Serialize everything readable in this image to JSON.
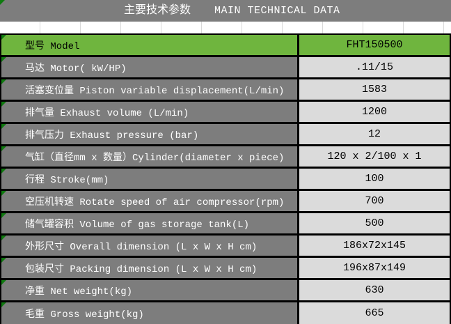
{
  "title_bar": {
    "title_zh": "主要技术参数",
    "title_en": "MAIN TECHNICAL DATA"
  },
  "table": {
    "rows": [
      {
        "label": "型号 Model",
        "value": "FHT150500",
        "highlight": true
      },
      {
        "label": "马达 Motor( kW/HP)",
        "value": ".11/15",
        "highlight": false
      },
      {
        "label": "活塞变位量 Piston variable displacement(L/min)",
        "value": "1583",
        "highlight": false
      },
      {
        "label": "排气量 Exhaust volume (L/min)",
        "value": "1200",
        "highlight": false
      },
      {
        "label": "排气压力 Exhaust pressure (bar)",
        "value": "12",
        "highlight": false
      },
      {
        "label": "气缸（直径mm x 数量）Cylinder(diameter x piece)",
        "value": "120 x 2/100 x 1",
        "highlight": false
      },
      {
        "label": "行程 Stroke(mm)",
        "value": "100",
        "highlight": false
      },
      {
        "label": "空压机转速 Rotate speed of air compressor(rpm)",
        "value": "700",
        "highlight": false
      },
      {
        "label": "储气罐容积 Volume of gas storage tank(L)",
        "value": "500",
        "highlight": false
      },
      {
        "label": "外形尺寸 Overall dimension (L x W x H cm)",
        "value": "186x72x145",
        "highlight": false
      },
      {
        "label": "包装尺寸 Packing dimension (L x W x H cm)",
        "value": "196x87x149",
        "highlight": false
      },
      {
        "label": "净重 Net weight(kg)",
        "value": "630",
        "highlight": false
      },
      {
        "label": "毛重 Gross weight(kg)",
        "value": "665",
        "highlight": false
      }
    ]
  },
  "colors": {
    "highlight_green": "#6fb53e",
    "label_gray": "#7d7d7d",
    "value_gray": "#dbdbdb",
    "title_bar_gray": "#7d7d7d",
    "flag_green": "#0f7a0f",
    "gridline_gray": "#d9d9d9",
    "border_black": "#000000"
  }
}
